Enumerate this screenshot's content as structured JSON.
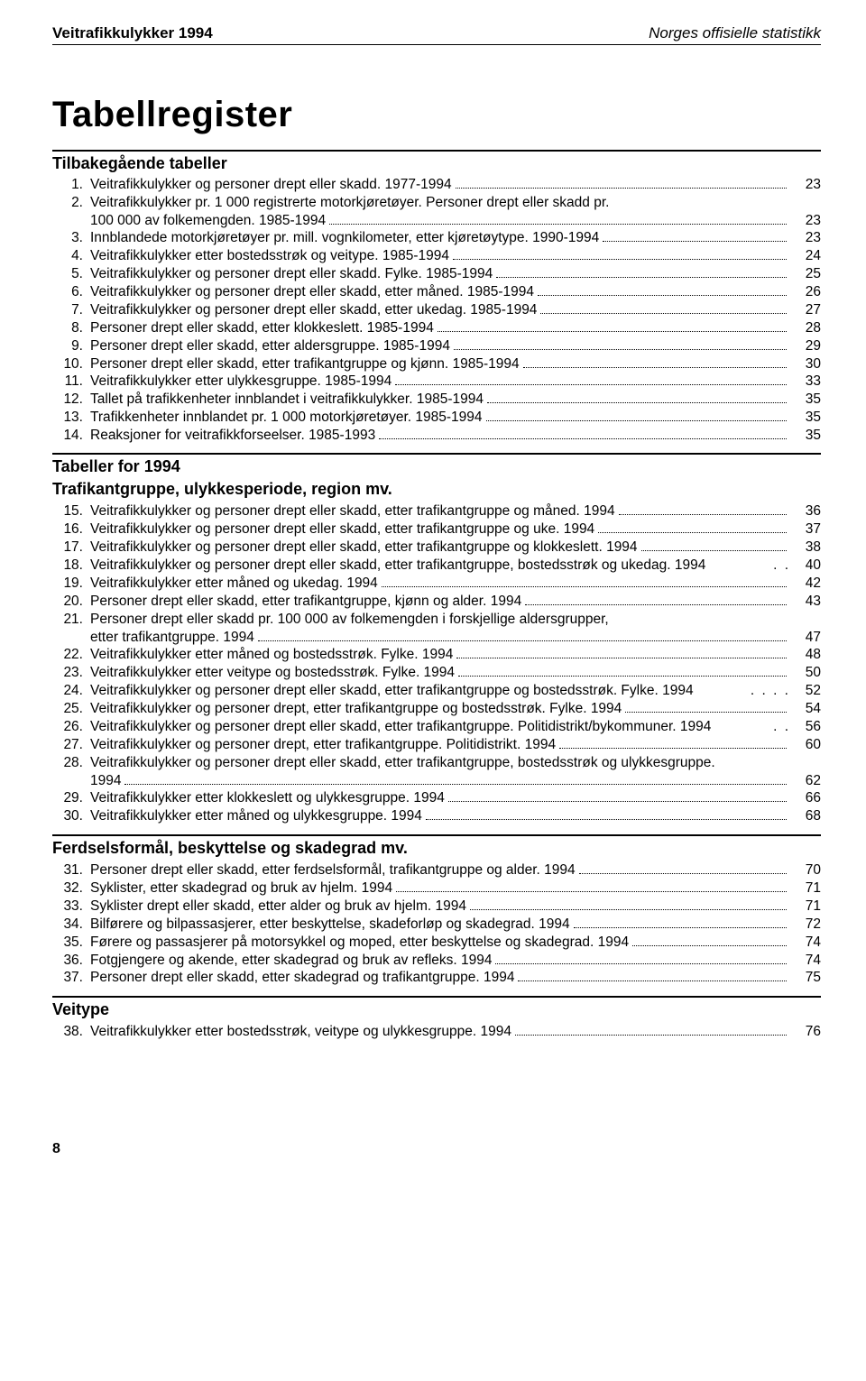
{
  "runningHead": {
    "left": "Veitrafikkulykker 1994",
    "right": "Norges offisielle statistikk"
  },
  "mainTitle": "Tabellregister",
  "sections": [
    {
      "heading": "Tilbakegående tabeller",
      "entries": [
        {
          "n": "1.",
          "t": "Veitrafikkulykker og personer drept eller skadd. 1977-1994",
          "p": "23"
        },
        {
          "n": "2.",
          "t": "Veitrafikkulykker pr. 1 000 registrerte motorkjøretøyer. Personer drept eller skadd pr.\n100 000 av folkemengden. 1985-1994",
          "p": "23"
        },
        {
          "n": "3.",
          "t": "Innblandede motorkjøretøyer pr. mill. vognkilometer, etter kjøretøytype. 1990-1994",
          "p": "23"
        },
        {
          "n": "4.",
          "t": "Veitrafikkulykker etter bostedsstrøk og veitype. 1985-1994",
          "p": "24"
        },
        {
          "n": "5.",
          "t": "Veitrafikkulykker og personer drept eller skadd. Fylke. 1985-1994",
          "p": "25"
        },
        {
          "n": "6.",
          "t": "Veitrafikkulykker og personer drept eller skadd, etter måned. 1985-1994",
          "p": "26"
        },
        {
          "n": "7.",
          "t": "Veitrafikkulykker og personer drept eller skadd, etter ukedag. 1985-1994",
          "p": "27"
        },
        {
          "n": "8.",
          "t": "Personer drept eller skadd, etter klokkeslett. 1985-1994",
          "p": "28"
        },
        {
          "n": "9.",
          "t": "Personer drept eller skadd, etter aldersgruppe. 1985-1994",
          "p": "29"
        },
        {
          "n": "10.",
          "t": "Personer drept eller skadd, etter trafikantgruppe og kjønn. 1985-1994",
          "p": "30"
        },
        {
          "n": "11.",
          "t": "Veitrafikkulykker etter ulykkesgruppe. 1985-1994",
          "p": "33"
        },
        {
          "n": "12.",
          "t": "Tallet på trafikkenheter innblandet i veitrafikkulykker. 1985-1994",
          "p": "35"
        },
        {
          "n": "13.",
          "t": "Trafikkenheter innblandet pr. 1 000 motorkjøretøyer. 1985-1994",
          "p": "35"
        },
        {
          "n": "14.",
          "t": "Reaksjoner for veitrafikkforseelser. 1985-1993",
          "p": "35"
        }
      ]
    },
    {
      "heading": "Tabeller for 1994",
      "subheading": "Trafikantgruppe, ulykkesperiode, region mv.",
      "entries": [
        {
          "n": "15.",
          "t": "Veitrafikkulykker og personer drept eller skadd, etter trafikantgruppe og måned. 1994",
          "p": "36"
        },
        {
          "n": "16.",
          "t": "Veitrafikkulykker og personer drept eller skadd, etter trafikantgruppe og uke. 1994",
          "p": "37"
        },
        {
          "n": "17.",
          "t": "Veitrafikkulykker og personer drept eller skadd, etter trafikantgruppe og klokkeslett. 1994",
          "p": "38"
        },
        {
          "n": "18.",
          "t": "Veitrafikkulykker og personer drept eller skadd, etter trafikantgruppe, bostedsstrøk og ukedag. 1994",
          "p": "40",
          "noleader": true
        },
        {
          "n": "19.",
          "t": "Veitrafikkulykker etter måned og ukedag. 1994",
          "p": "42"
        },
        {
          "n": "20.",
          "t": "Personer drept eller skadd, etter trafikantgruppe, kjønn og alder. 1994",
          "p": "43"
        },
        {
          "n": "21.",
          "t": "Personer drept eller skadd pr. 100 000 av folkemengden i forskjellige aldersgrupper,\netter trafikantgruppe. 1994",
          "p": "47"
        },
        {
          "n": "22.",
          "t": "Veitrafikkulykker etter måned og bostedsstrøk. Fylke. 1994",
          "p": "48"
        },
        {
          "n": "23.",
          "t": "Veitrafikkulykker etter veitype og bostedsstrøk. Fylke. 1994",
          "p": "50"
        },
        {
          "n": "24.",
          "t": "Veitrafikkulykker og personer drept eller skadd, etter trafikantgruppe og bostedsstrøk. Fylke. 1994",
          "p": "52",
          "shortleader": true
        },
        {
          "n": "25.",
          "t": "Veitrafikkulykker og personer drept, etter trafikantgruppe og bostedsstrøk. Fylke. 1994",
          "p": "54"
        },
        {
          "n": "26.",
          "t": "Veitrafikkulykker og personer drept eller skadd, etter trafikantgruppe. Politidistrikt/bykommuner. 1994",
          "p": "56",
          "noleader": true
        },
        {
          "n": "27.",
          "t": "Veitrafikkulykker og personer drept, etter trafikantgruppe. Politidistrikt. 1994",
          "p": "60"
        },
        {
          "n": "28.",
          "t": "Veitrafikkulykker og personer drept eller skadd, etter trafikantgruppe, bostedsstrøk og ulykkesgruppe.\n1994",
          "p": "62"
        },
        {
          "n": "29.",
          "t": "Veitrafikkulykker etter klokkeslett og ulykkesgruppe. 1994",
          "p": "66"
        },
        {
          "n": "30.",
          "t": "Veitrafikkulykker etter måned og ulykkesgruppe. 1994",
          "p": "68"
        }
      ]
    },
    {
      "subheading": "Ferdselsformål, beskyttelse og skadegrad mv.",
      "entries": [
        {
          "n": "31.",
          "t": "Personer drept eller skadd, etter ferdselsformål, trafikantgruppe og alder. 1994",
          "p": "70"
        },
        {
          "n": "32.",
          "t": "Syklister, etter skadegrad og bruk av hjelm. 1994",
          "p": "71"
        },
        {
          "n": "33.",
          "t": "Syklister drept eller skadd, etter alder og bruk av hjelm. 1994",
          "p": "71"
        },
        {
          "n": "34.",
          "t": "Bilførere og bilpassasjerer, etter beskyttelse, skadeforløp og skadegrad. 1994",
          "p": "72"
        },
        {
          "n": "35.",
          "t": "Førere og passasjerer på motorsykkel og moped, etter beskyttelse og skadegrad. 1994",
          "p": "74"
        },
        {
          "n": "36.",
          "t": "Fotgjengere og akende, etter skadegrad og bruk av refleks. 1994",
          "p": "74"
        },
        {
          "n": "37.",
          "t": "Personer drept eller skadd, etter skadegrad og trafikantgruppe. 1994",
          "p": "75"
        }
      ]
    },
    {
      "subheading": "Veitype",
      "entries": [
        {
          "n": "38.",
          "t": "Veitrafikkulykker etter bostedsstrøk, veitype og ulykkesgruppe. 1994",
          "p": "76"
        }
      ]
    }
  ],
  "pageNumber": "8"
}
